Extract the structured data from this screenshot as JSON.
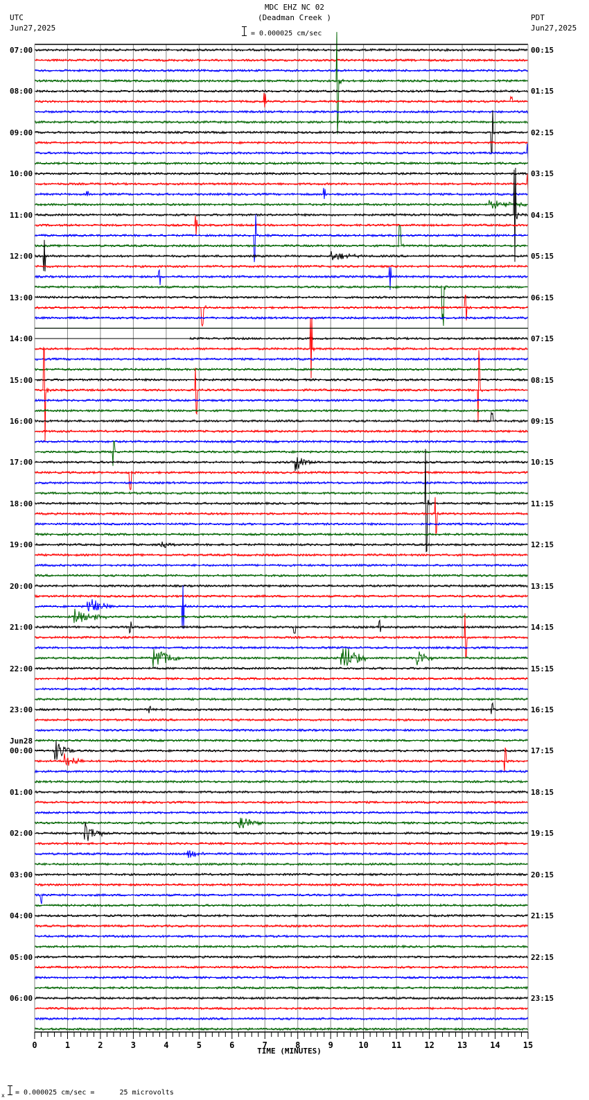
{
  "header": {
    "station": "MDC EHZ NC 02",
    "location": "(Deadman Creek )",
    "scale_text": "= 0.000025 cm/sec",
    "left_tz": "UTC",
    "left_date": "Jun27,2025",
    "right_tz": "PDT",
    "right_date": "Jun27,2025"
  },
  "footer": {
    "scale_text": "= 0.000025 cm/sec =      25 microvolts",
    "mark": "x"
  },
  "colors": {
    "trace_cycle": [
      "#000000",
      "#ff0000",
      "#0000ff",
      "#006400"
    ],
    "grid": "#888888",
    "frame": "#000000"
  },
  "chart_data": {
    "type": "line",
    "title": "MDC EHZ NC 02 (Deadman Creek ) — helicorder seismogram",
    "subtitle": "= 0.000025 cm/sec",
    "xlabel": "TIME (MINUTES)",
    "ylabel": "",
    "xlim": [
      0,
      15
    ],
    "x_ticks": [
      "0",
      "1",
      "2",
      "3",
      "4",
      "5",
      "6",
      "7",
      "8",
      "9",
      "10",
      "11",
      "12",
      "13",
      "14",
      "15"
    ],
    "grid": true,
    "rows_per_hour": 4,
    "row_count": 96,
    "left_axis_labels": [
      {
        "row": 0,
        "text": "07:00"
      },
      {
        "row": 4,
        "text": "08:00"
      },
      {
        "row": 8,
        "text": "09:00"
      },
      {
        "row": 12,
        "text": "10:00"
      },
      {
        "row": 16,
        "text": "11:00"
      },
      {
        "row": 20,
        "text": "12:00"
      },
      {
        "row": 24,
        "text": "13:00"
      },
      {
        "row": 28,
        "text": "14:00"
      },
      {
        "row": 32,
        "text": "15:00"
      },
      {
        "row": 36,
        "text": "16:00"
      },
      {
        "row": 40,
        "text": "17:00"
      },
      {
        "row": 44,
        "text": "18:00"
      },
      {
        "row": 48,
        "text": "19:00"
      },
      {
        "row": 52,
        "text": "20:00"
      },
      {
        "row": 56,
        "text": "21:00"
      },
      {
        "row": 60,
        "text": "22:00"
      },
      {
        "row": 64,
        "text": "23:00"
      },
      {
        "row": 68,
        "text": "00:00",
        "date": "Jun28"
      },
      {
        "row": 72,
        "text": "01:00"
      },
      {
        "row": 76,
        "text": "02:00"
      },
      {
        "row": 80,
        "text": "03:00"
      },
      {
        "row": 84,
        "text": "04:00"
      },
      {
        "row": 88,
        "text": "05:00"
      },
      {
        "row": 92,
        "text": "06:00"
      }
    ],
    "right_axis_labels": [
      {
        "row": 0,
        "text": "00:15"
      },
      {
        "row": 4,
        "text": "01:15"
      },
      {
        "row": 8,
        "text": "02:15"
      },
      {
        "row": 12,
        "text": "03:15"
      },
      {
        "row": 16,
        "text": "04:15"
      },
      {
        "row": 20,
        "text": "05:15"
      },
      {
        "row": 24,
        "text": "06:15"
      },
      {
        "row": 28,
        "text": "07:15"
      },
      {
        "row": 32,
        "text": "08:15"
      },
      {
        "row": 36,
        "text": "09:15"
      },
      {
        "row": 40,
        "text": "10:15"
      },
      {
        "row": 44,
        "text": "11:15"
      },
      {
        "row": 48,
        "text": "12:15"
      },
      {
        "row": 52,
        "text": "13:15"
      },
      {
        "row": 56,
        "text": "14:15"
      },
      {
        "row": 60,
        "text": "15:15"
      },
      {
        "row": 64,
        "text": "16:15"
      },
      {
        "row": 68,
        "text": "17:15"
      },
      {
        "row": 72,
        "text": "18:15"
      },
      {
        "row": 76,
        "text": "19:15"
      },
      {
        "row": 80,
        "text": "20:15"
      },
      {
        "row": 84,
        "text": "21:15"
      },
      {
        "row": 88,
        "text": "22:15"
      },
      {
        "row": 92,
        "text": "23:15"
      }
    ],
    "data_gap": {
      "row_start": 27,
      "minute_start": 0,
      "row_end": 28,
      "minute_end": 4.7
    },
    "events": [
      {
        "row": 5,
        "minute": 7.0,
        "amp": 14
      },
      {
        "row": 5,
        "minute": 14.5,
        "amp": 8
      },
      {
        "row": 3,
        "minute": 9.2,
        "amp": 80
      },
      {
        "row": 8,
        "minute": 13.9,
        "amp": 45
      },
      {
        "row": 10,
        "minute": 15.0,
        "amp": 20
      },
      {
        "row": 13,
        "minute": 15.0,
        "amp": 20
      },
      {
        "row": 14,
        "minute": 1.6,
        "amp": 6
      },
      {
        "row": 14,
        "minute": 8.8,
        "amp": 10
      },
      {
        "row": 15,
        "minute": 13.8,
        "amp": 6,
        "burst": 2.0
      },
      {
        "row": 16,
        "minute": 14.6,
        "amp": 90
      },
      {
        "row": 17,
        "minute": 4.9,
        "amp": 14
      },
      {
        "row": 18,
        "minute": 6.7,
        "amp": 40
      },
      {
        "row": 19,
        "minute": 11.1,
        "amp": 40
      },
      {
        "row": 20,
        "minute": 9.0,
        "amp": 8,
        "burst": 1.0
      },
      {
        "row": 20,
        "minute": 0.3,
        "amp": 30
      },
      {
        "row": 22,
        "minute": 3.8,
        "amp": 14
      },
      {
        "row": 22,
        "minute": 10.8,
        "amp": 20
      },
      {
        "row": 23,
        "minute": 12.4,
        "amp": 60
      },
      {
        "row": 25,
        "minute": 13.1,
        "amp": 20
      },
      {
        "row": 25,
        "minute": 5.1,
        "amp": 40
      },
      {
        "row": 28,
        "minute": 3.5,
        "amp": 70
      },
      {
        "row": 29,
        "minute": 8.4,
        "amp": 60
      },
      {
        "row": 33,
        "minute": 0.3,
        "amp": 80
      },
      {
        "row": 33,
        "minute": 4.9,
        "amp": 40
      },
      {
        "row": 33,
        "minute": 13.5,
        "amp": 60
      },
      {
        "row": 36,
        "minute": 13.9,
        "amp": 12
      },
      {
        "row": 39,
        "minute": 2.4,
        "amp": 20
      },
      {
        "row": 40,
        "minute": 7.9,
        "amp": 14,
        "burst": 0.6
      },
      {
        "row": 41,
        "minute": 2.9,
        "amp": 30
      },
      {
        "row": 44,
        "minute": 11.9,
        "amp": 90
      },
      {
        "row": 45,
        "minute": 12.2,
        "amp": 40
      },
      {
        "row": 48,
        "minute": 3.8,
        "amp": 6,
        "burst": 0.5
      },
      {
        "row": 54,
        "minute": 1.6,
        "amp": 14,
        "burst": 0.8
      },
      {
        "row": 55,
        "minute": 1.2,
        "amp": 14,
        "burst": 1.0
      },
      {
        "row": 56,
        "minute": 2.9,
        "amp": 10
      },
      {
        "row": 56,
        "minute": 7.9,
        "amp": 10
      },
      {
        "row": 56,
        "minute": 10.5,
        "amp": 10
      },
      {
        "row": 54,
        "minute": 4.5,
        "amp": 50
      },
      {
        "row": 59,
        "minute": 3.6,
        "amp": 20,
        "burst": 0.8
      },
      {
        "row": 59,
        "minute": 9.3,
        "amp": 24,
        "burst": 0.8
      },
      {
        "row": 59,
        "minute": 11.6,
        "amp": 14,
        "burst": 0.6
      },
      {
        "row": 57,
        "minute": 13.1,
        "amp": 40
      },
      {
        "row": 64,
        "minute": 3.5,
        "amp": 6
      },
      {
        "row": 64,
        "minute": 13.9,
        "amp": 8
      },
      {
        "row": 68,
        "minute": 0.6,
        "amp": 18,
        "burst": 0.6
      },
      {
        "row": 69,
        "minute": 0.9,
        "amp": 14,
        "burst": 0.6
      },
      {
        "row": 69,
        "minute": 14.3,
        "amp": 20
      },
      {
        "row": 75,
        "minute": 6.2,
        "amp": 14,
        "burst": 0.8
      },
      {
        "row": 76,
        "minute": 1.5,
        "amp": 18,
        "burst": 0.6
      },
      {
        "row": 78,
        "minute": 4.6,
        "amp": 10,
        "burst": 0.6
      },
      {
        "row": 82,
        "minute": 0.2,
        "amp": 16
      }
    ]
  }
}
